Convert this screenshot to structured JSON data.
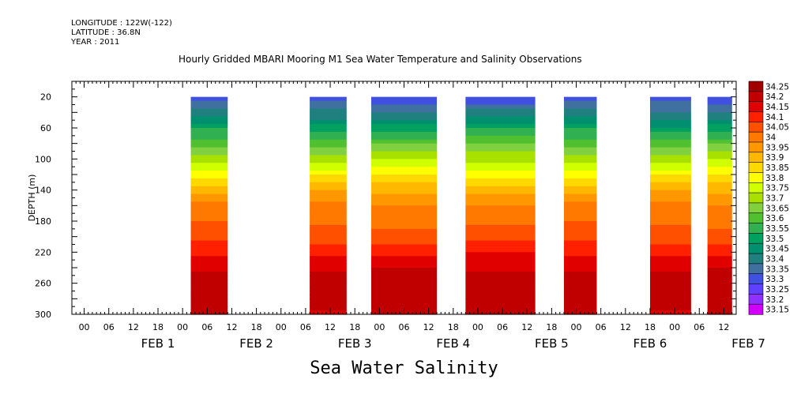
{
  "header": {
    "longitude": "LONGITUDE : 122W(-122)",
    "latitude": "LATITUDE : 36.8N",
    "year": "YEAR : 2011",
    "title": "Hourly Gridded MBARI Mooring M1 Sea Water Temperature and Salinity Observations"
  },
  "footer_title": "Sea Water Salinity",
  "chart_data": {
    "type": "heatmap",
    "title": "Hourly Gridded MBARI Mooring M1 Sea Water Temperature and Salinity Observations",
    "xlabel": "",
    "ylabel": "DEPTH (m)",
    "ylim": [
      300,
      0
    ],
    "y_ticks": [
      20,
      60,
      100,
      140,
      180,
      220,
      260,
      300
    ],
    "xlim_hours": [
      -15,
      147
    ],
    "x_hour_labels": [
      "00",
      "06",
      "12",
      "18",
      "00",
      "06",
      "12",
      "18",
      "00",
      "06",
      "12",
      "18",
      "00",
      "06",
      "12",
      "18",
      "00",
      "06",
      "12",
      "18",
      "00",
      "06",
      "12",
      "18",
      "00",
      "06",
      "12",
      "18"
    ],
    "day_labels": [
      "FEB  1",
      "FEB  2",
      "FEB  3",
      "FEB  4",
      "FEB  5",
      "FEB  6",
      "FEB  7"
    ],
    "data_segments_hours": [
      [
        14,
        23
      ],
      [
        43,
        52
      ],
      [
        58,
        74
      ],
      [
        81,
        98
      ],
      [
        105,
        113
      ],
      [
        126,
        136
      ],
      [
        140,
        146
      ]
    ],
    "depth_profile": [
      {
        "depth": 20,
        "value": 33.3
      },
      {
        "depth": 40,
        "value": 33.4
      },
      {
        "depth": 60,
        "value": 33.52
      },
      {
        "depth": 80,
        "value": 33.62
      },
      {
        "depth": 100,
        "value": 33.72
      },
      {
        "depth": 120,
        "value": 33.82
      },
      {
        "depth": 140,
        "value": 33.92
      },
      {
        "depth": 160,
        "value": 34.0
      },
      {
        "depth": 180,
        "value": 34.02
      },
      {
        "depth": 200,
        "value": 34.06
      },
      {
        "depth": 220,
        "value": 34.12
      },
      {
        "depth": 240,
        "value": 34.17
      },
      {
        "depth": 260,
        "value": 34.22
      },
      {
        "depth": 280,
        "value": 34.2
      },
      {
        "depth": 300,
        "value": 34.17
      }
    ],
    "colorbar": {
      "levels": [
        "34.25",
        "34.2",
        "34.15",
        "34.1",
        "34.05",
        "34",
        "33.95",
        "33.9",
        "33.85",
        "33.8",
        "33.75",
        "33.7",
        "33.65",
        "33.6",
        "33.55",
        "33.5",
        "33.45",
        "33.4",
        "33.35",
        "33.3",
        "33.25",
        "33.2",
        "33.15"
      ],
      "colors": [
        "#a00000",
        "#c00000",
        "#e00000",
        "#ff2000",
        "#ff5000",
        "#ff7800",
        "#ff9800",
        "#ffb800",
        "#ffd800",
        "#ffff00",
        "#d0ff00",
        "#a8e000",
        "#80d040",
        "#50c030",
        "#30b050",
        "#00a060",
        "#009070",
        "#208080",
        "#4070a0",
        "#4050e0",
        "#6040ff",
        "#9030ff",
        "#d000ff"
      ]
    }
  }
}
